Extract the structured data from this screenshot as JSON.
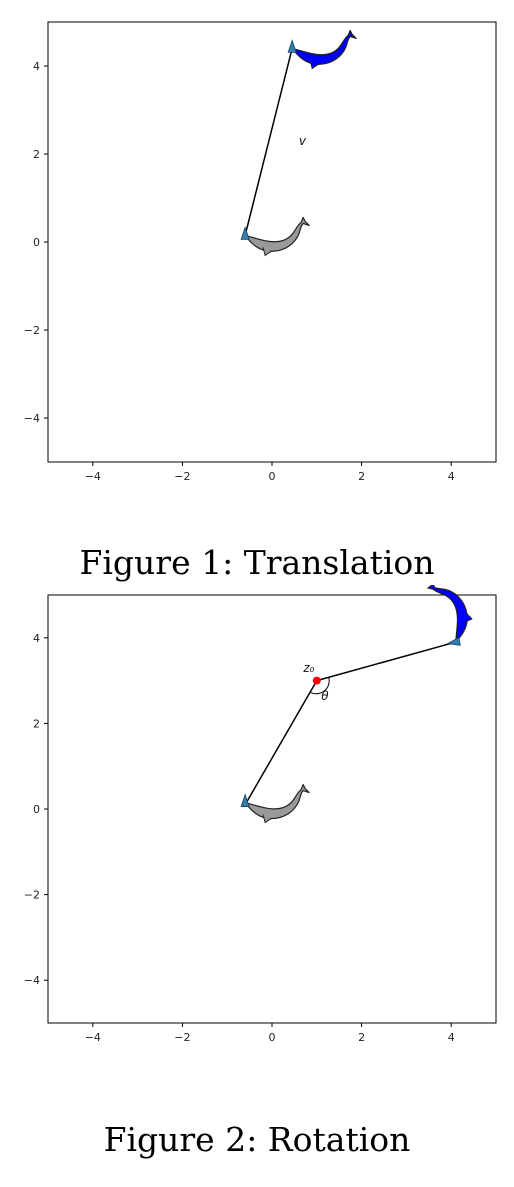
{
  "figures": [
    {
      "caption": "Figure 1: Translation",
      "chart_data": {
        "type": "scatter",
        "title": "",
        "xlabel": "",
        "ylabel": "",
        "xlim": [
          -5,
          5
        ],
        "ylim": [
          -5,
          5
        ],
        "xticks": [
          "−4",
          "−2",
          "0",
          "2",
          "4"
        ],
        "yticks": [
          "−4",
          "−2",
          "0",
          "2",
          "4"
        ],
        "grid": false,
        "objects": [
          {
            "name": "original-dolphin",
            "color": "#999999",
            "anchor": [
              -0.6,
              0.15
            ],
            "angle": 0
          },
          {
            "name": "translated-dolphin",
            "color": "#0000ff",
            "anchor": [
              0.45,
              4.4
            ],
            "angle": 0
          }
        ],
        "vectors": [
          {
            "from": [
              -0.6,
              0.15
            ],
            "to": [
              0.45,
              4.4
            ],
            "label": "v",
            "label_at": [
              0.6,
              2.2
            ]
          }
        ],
        "points": []
      }
    },
    {
      "caption": "Figure 2: Rotation",
      "chart_data": {
        "type": "scatter",
        "title": "",
        "xlabel": "",
        "ylabel": "",
        "xlim": [
          -5,
          5
        ],
        "ylim": [
          -5,
          5
        ],
        "xticks": [
          "−4",
          "−2",
          "0",
          "2",
          "4"
        ],
        "yticks": [
          "−4",
          "−2",
          "0",
          "2",
          "4"
        ],
        "grid": false,
        "objects": [
          {
            "name": "original-dolphin",
            "color": "#999999",
            "anchor": [
              -0.6,
              0.15
            ],
            "angle": 0
          },
          {
            "name": "rotated-dolphin",
            "color": "#0000ff",
            "anchor": [
              4.1,
              3.9
            ],
            "angle": -100
          }
        ],
        "vectors": [
          {
            "from": [
              1.0,
              3.0
            ],
            "to": [
              -0.6,
              0.1
            ],
            "label": "",
            "label_at": null
          },
          {
            "from": [
              1.0,
              3.0
            ],
            "to": [
              4.1,
              3.9
            ],
            "label": "",
            "label_at": null
          }
        ],
        "points": [
          {
            "name": "z0",
            "at": [
              1.0,
              3.0
            ],
            "color": "#ff0000",
            "label": "z₀",
            "label_at": [
              0.7,
              3.2
            ]
          }
        ],
        "angle_marker": {
          "center": [
            1.0,
            3.0
          ],
          "label": "θ",
          "label_at": [
            1.1,
            2.55
          ]
        }
      }
    }
  ]
}
